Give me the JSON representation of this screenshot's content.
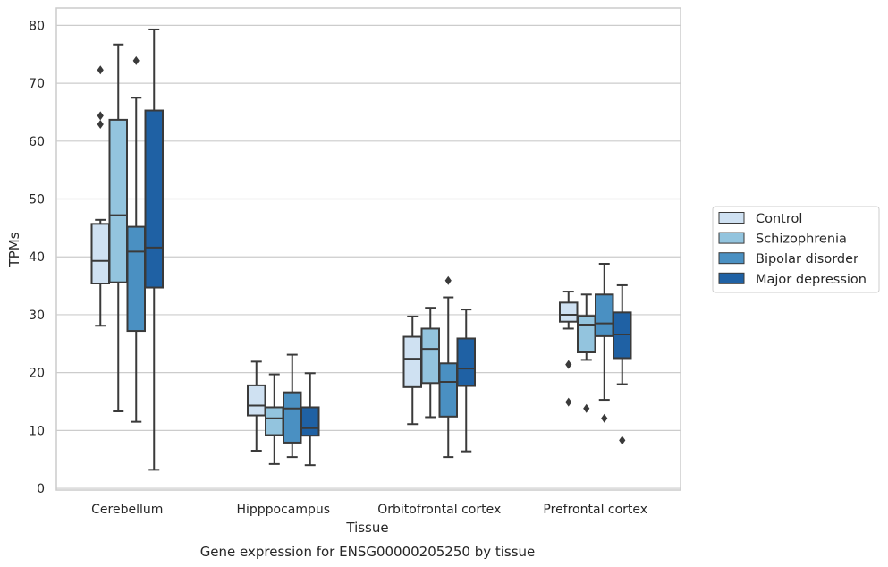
{
  "chart_data": {
    "type": "boxplot",
    "title": "",
    "caption": "Gene expression for ENSG00000205250 by tissue",
    "xlabel": "Tissue",
    "ylabel": "TPMs",
    "ylim": [
      -0.3,
      83
    ],
    "yticks": [
      0,
      10,
      20,
      30,
      40,
      50,
      60,
      70,
      80
    ],
    "grid": "horizontal",
    "legend_position": "right",
    "categories": [
      "Cerebellum",
      "Hipppocampus",
      "Orbitofrontal cortex",
      "Prefrontal cortex"
    ],
    "series": [
      {
        "name": "Control",
        "color": "#cfe1f2",
        "boxes": [
          {
            "whislo": 28.1,
            "q1": 35.4,
            "med": 39.3,
            "q3": 45.7,
            "whishi": 46.4,
            "fliers": [
              72.3,
              64.4,
              62.9
            ]
          },
          {
            "whislo": 6.5,
            "q1": 12.6,
            "med": 14.3,
            "q3": 17.8,
            "whishi": 21.9,
            "fliers": []
          },
          {
            "whislo": 11.1,
            "q1": 17.5,
            "med": 22.4,
            "q3": 26.2,
            "whishi": 29.7,
            "fliers": []
          },
          {
            "whislo": 27.6,
            "q1": 28.8,
            "med": 30.0,
            "q3": 32.1,
            "whishi": 34.0,
            "fliers": [
              21.4,
              14.9
            ]
          }
        ]
      },
      {
        "name": "Schizophrenia",
        "color": "#93c4de",
        "boxes": [
          {
            "whislo": 13.3,
            "q1": 35.6,
            "med": 47.2,
            "q3": 63.7,
            "whishi": 76.7,
            "fliers": []
          },
          {
            "whislo": 4.2,
            "q1": 9.2,
            "med": 12.1,
            "q3": 14.0,
            "whishi": 19.7,
            "fliers": []
          },
          {
            "whislo": 12.3,
            "q1": 18.2,
            "med": 24.1,
            "q3": 27.6,
            "whishi": 31.2,
            "fliers": []
          },
          {
            "whislo": 22.2,
            "q1": 23.5,
            "med": 28.3,
            "q3": 29.8,
            "whishi": 33.5,
            "fliers": [
              13.8
            ]
          }
        ]
      },
      {
        "name": "Bipolar disorder",
        "color": "#4a90c2",
        "boxes": [
          {
            "whislo": 11.5,
            "q1": 27.2,
            "med": 40.9,
            "q3": 45.2,
            "whishi": 67.5,
            "fliers": [
              73.9
            ]
          },
          {
            "whislo": 5.4,
            "q1": 7.9,
            "med": 13.8,
            "q3": 16.6,
            "whishi": 23.1,
            "fliers": []
          },
          {
            "whislo": 5.4,
            "q1": 12.4,
            "med": 18.4,
            "q3": 21.6,
            "whishi": 33.0,
            "fliers": [
              35.9
            ]
          },
          {
            "whislo": 15.3,
            "q1": 26.3,
            "med": 28.5,
            "q3": 33.5,
            "whishi": 38.8,
            "fliers": [
              12.1
            ]
          }
        ]
      },
      {
        "name": "Major depression",
        "color": "#1f61a4",
        "boxes": [
          {
            "whislo": 3.2,
            "q1": 34.7,
            "med": 41.6,
            "q3": 65.3,
            "whishi": 79.3,
            "fliers": []
          },
          {
            "whislo": 4.0,
            "q1": 9.1,
            "med": 10.4,
            "q3": 14.0,
            "whishi": 19.9,
            "fliers": []
          },
          {
            "whislo": 6.4,
            "q1": 17.7,
            "med": 20.7,
            "q3": 25.9,
            "whishi": 30.9,
            "fliers": []
          },
          {
            "whislo": 18.0,
            "q1": 22.5,
            "med": 26.6,
            "q3": 30.4,
            "whishi": 35.1,
            "fliers": [
              8.3
            ]
          }
        ]
      }
    ],
    "colors": {
      "box_edge": "#3a3a3a",
      "grid": "#cccccc",
      "frame": "#cccccc",
      "text": "#262626"
    }
  }
}
